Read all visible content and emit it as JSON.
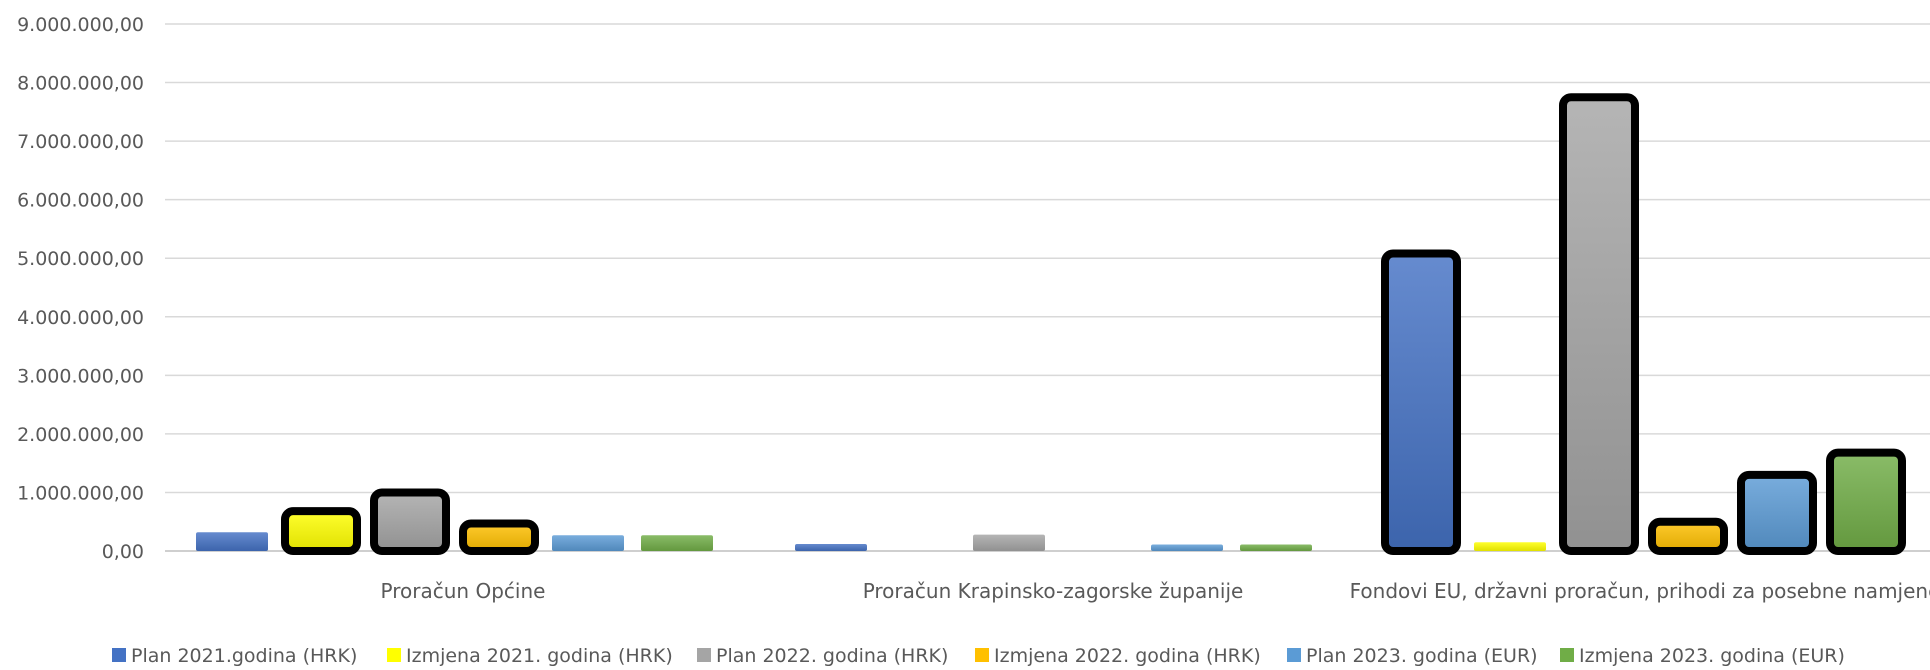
{
  "chart_data": {
    "type": "bar",
    "title": "",
    "xlabel": "",
    "ylabel": "",
    "ylim": [
      0,
      9000000
    ],
    "y_ticks": [
      0,
      1000000,
      2000000,
      3000000,
      4000000,
      5000000,
      6000000,
      7000000,
      8000000,
      9000000
    ],
    "y_tick_labels": [
      "0,00",
      "1.000.000,00",
      "2.000.000,00",
      "3.000.000,00",
      "4.000.000,00",
      "5.000.000,00",
      "6.000.000,00",
      "7.000.000,00",
      "8.000.000,00",
      "9.000.000,00"
    ],
    "grid": true,
    "legend_position": "bottom",
    "categories": [
      "Proračun Općine",
      "Proračun Krapinsko-zagorske županije",
      "Fondovi EU, državni proračun, prihodi za posebne namjene"
    ],
    "series": [
      {
        "name": "Plan 2021.godina (HRK)",
        "color": "#4472c4",
        "values": [
          320000,
          120000,
          5080000
        ]
      },
      {
        "name": "Izmjena 2021. godina (HRK)",
        "color": "#ffff00",
        "values": [
          680000,
          0,
          150000
        ]
      },
      {
        "name": "Plan 2022. godina (HRK)",
        "color": "#a5a5a5",
        "values": [
          1000000,
          280000,
          7750000
        ]
      },
      {
        "name": "Izmjena 2022. godina (HRK)",
        "color": "#ffc000",
        "values": [
          470000,
          0,
          500000
        ]
      },
      {
        "name": "Plan 2023. godina (EUR)",
        "color": "#5b9bd5",
        "values": [
          270000,
          110000,
          1300000
        ]
      },
      {
        "name": "Izmjena 2023. godina (EUR)",
        "color": "#70ad47",
        "values": [
          270000,
          110000,
          1680000
        ]
      }
    ]
  }
}
